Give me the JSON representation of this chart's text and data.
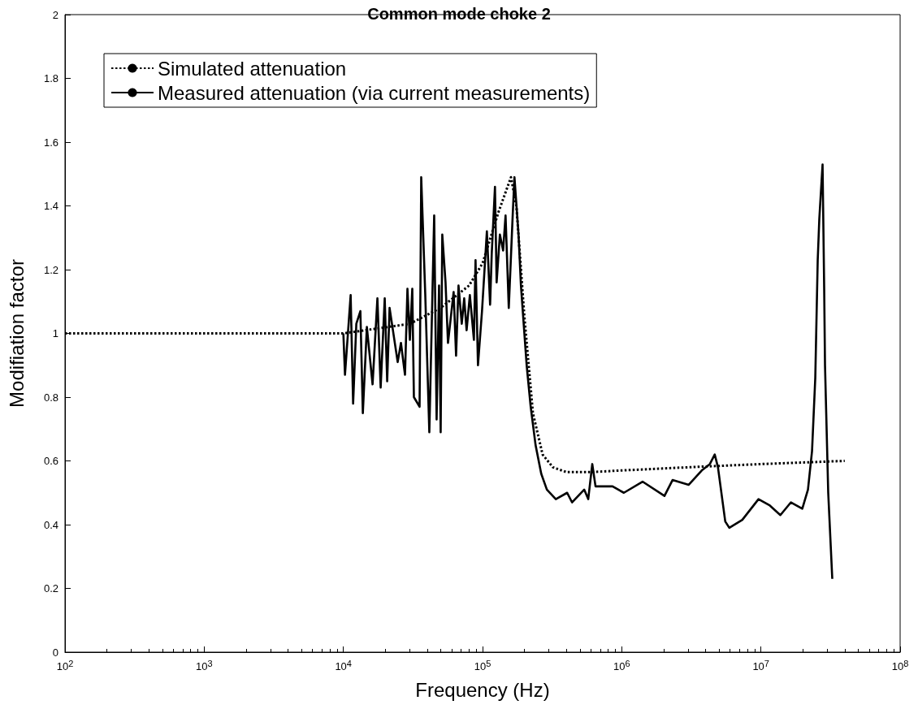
{
  "chart_data": {
    "type": "line",
    "title": "Common mode choke 2",
    "xlabel": "Frequency (Hz)",
    "ylabel": "Modifiation factor",
    "log": "x",
    "grid": false,
    "legend": "top left",
    "marker": "none",
    "xlim": [
      100,
      100000000
    ],
    "xticks": [
      {
        "value": 100,
        "label": "10$^{2}$"
      },
      {
        "value": 1000,
        "label": "10$^{3}$"
      },
      {
        "value": 10000,
        "label": "10$^{4}$"
      },
      {
        "value": 100000,
        "label": "10$^{5}$"
      },
      {
        "value": 1000000,
        "label": "10$^{6}$"
      },
      {
        "value": 10000000,
        "label": "10$^{7}$"
      },
      {
        "value": 100000000,
        "label": "10$^{8}$"
      }
    ],
    "ylim": [
      0,
      2
    ],
    "yticks": [
      0,
      0.2,
      0.4,
      0.6,
      0.8,
      1,
      1.2,
      1.4,
      1.6,
      1.8,
      2
    ],
    "series": [
      {
        "name": "Simulated attenuation",
        "color": "#000000",
        "line_style": "dotted",
        "x": [
          100,
          10000,
          30000,
          50000,
          80000,
          100000,
          130000,
          160000,
          175000,
          200000,
          230000,
          270000,
          320000,
          400000,
          600000,
          1000000,
          3000000,
          10000000,
          40000000
        ],
        "values": [
          1,
          1,
          1.03,
          1.08,
          1.15,
          1.22,
          1.38,
          1.49,
          1.4,
          1.05,
          0.75,
          0.62,
          0.58,
          0.565,
          0.565,
          0.57,
          0.58,
          0.59,
          0.6
        ]
      },
      {
        "name": "Measured attenuation (via current measurements)",
        "color": "#000000",
        "line_style": "solid",
        "x": [
          10000,
          10270,
          11280,
          11750,
          12390,
          13250,
          13800,
          14750,
          16210,
          17560,
          18530,
          19820,
          20640,
          21480,
          24560,
          25920,
          27720,
          28860,
          30050,
          31270,
          32120,
          35280,
          36250,
          38770,
          41450,
          44920,
          46760,
          48690,
          50000,
          51360,
          54200,
          56440,
          61970,
          64520,
          67180,
          70880,
          73790,
          76800,
          81040,
          86670,
          89040,
          92690,
          99100,
          107400,
          113300,
          116400,
          122800,
          126200,
          133200,
          140500,
          146300,
          154300,
          165000,
          169500,
          181300,
          188700,
          207400,
          221700,
          240300,
          263900,
          289800,
          336000,
          405300,
          439300,
          537200,
          574400,
          614200,
          648000,
          858900,
          1036000,
          1411000,
          2027000,
          2317000,
          3030000,
          3755000,
          4295000,
          4656000,
          4912000,
          5542000,
          5926000,
          7345000,
          9605000,
          11590000,
          13790000,
          16430000,
          19820000,
          21770000,
          23280000,
          24570000,
          25580000,
          26270000,
          27720000,
          28470000,
          28860000,
          30440000,
          32550000
        ],
        "values": [
          1.0,
          0.87,
          1.12,
          0.78,
          1.03,
          1.07,
          0.75,
          1.02,
          0.84,
          1.11,
          0.83,
          1.11,
          0.85,
          1.08,
          0.91,
          0.97,
          0.87,
          1.14,
          0.98,
          1.14,
          0.8,
          0.77,
          1.49,
          1.12,
          0.69,
          1.37,
          0.73,
          1.15,
          0.69,
          1.31,
          1.16,
          0.97,
          1.13,
          0.93,
          1.15,
          1.03,
          1.11,
          1.01,
          1.12,
          0.98,
          1.23,
          0.9,
          1.07,
          1.32,
          1.09,
          1.25,
          1.46,
          1.16,
          1.31,
          1.26,
          1.37,
          1.08,
          1.38,
          1.49,
          1.31,
          1.15,
          0.9,
          0.77,
          0.65,
          0.56,
          0.51,
          0.48,
          0.5,
          0.47,
          0.51,
          0.48,
          0.59,
          0.52,
          0.52,
          0.5,
          0.535,
          0.49,
          0.54,
          0.525,
          0.57,
          0.59,
          0.62,
          0.58,
          0.41,
          0.39,
          0.415,
          0.48,
          0.46,
          0.43,
          0.47,
          0.45,
          0.51,
          0.63,
          0.86,
          1.23,
          1.36,
          1.53,
          1.14,
          0.9,
          0.5,
          0.23
        ]
      }
    ]
  }
}
